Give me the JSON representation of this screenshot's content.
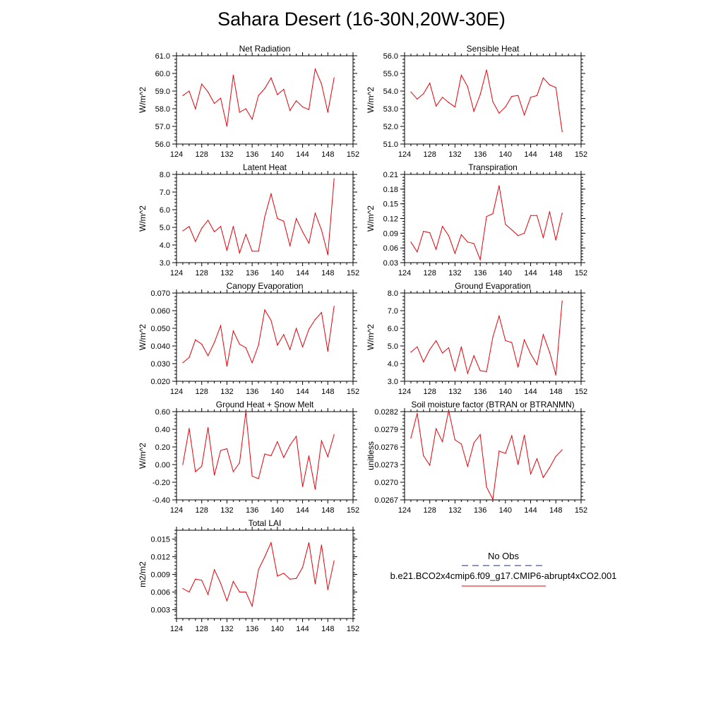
{
  "title": "Sahara Desert (16-30N,20W-30E)",
  "colors": {
    "model": "#e8000b",
    "obs": "#1f2a7a",
    "axis": "#000000"
  },
  "legend": {
    "obs_label": "No Obs",
    "model_label": "b.e21.BCO2x4cmip6.f09_g17.CMIP6-abrupt4xCO2.001"
  },
  "chart_data": [
    {
      "type": "line",
      "panel": "top-left",
      "title": "Net Radiation",
      "ylabel": "W/m^2",
      "xlim": [
        124,
        152
      ],
      "xticks": [
        "124",
        "128",
        "132",
        "136",
        "140",
        "144",
        "148",
        "152"
      ],
      "ylim": [
        56.0,
        61.0
      ],
      "yticks": [
        "56.0",
        "57.0",
        "58.0",
        "59.0",
        "60.0",
        "61.0"
      ],
      "x": [
        125,
        126,
        127,
        128,
        129,
        130,
        131,
        132,
        133,
        134,
        135,
        136,
        137,
        138,
        139,
        140,
        141,
        142,
        143,
        144,
        145,
        146,
        147,
        148,
        149
      ],
      "values": [
        58.75,
        59.0,
        58.0,
        59.4,
        58.95,
        58.3,
        58.6,
        57.0,
        59.9,
        57.8,
        58.0,
        57.4,
        58.75,
        59.15,
        59.75,
        58.8,
        59.1,
        57.9,
        58.45,
        58.1,
        57.95,
        60.25,
        59.4,
        57.8,
        59.75
      ]
    },
    {
      "type": "line",
      "panel": "top-right",
      "title": "Sensible Heat",
      "ylabel": "W/m^2",
      "xlim": [
        124,
        152
      ],
      "xticks": [
        "124",
        "128",
        "132",
        "136",
        "140",
        "144",
        "148",
        "152"
      ],
      "ylim": [
        51.0,
        56.0
      ],
      "yticks": [
        "51.0",
        "52.0",
        "53.0",
        "54.0",
        "55.0",
        "56.0"
      ],
      "x": [
        125,
        126,
        127,
        128,
        129,
        130,
        131,
        132,
        133,
        134,
        135,
        136,
        137,
        138,
        139,
        140,
        141,
        142,
        143,
        144,
        145,
        146,
        147,
        148,
        149
      ],
      "values": [
        53.95,
        53.55,
        53.85,
        54.45,
        53.15,
        53.65,
        53.35,
        53.1,
        54.9,
        54.25,
        52.85,
        53.8,
        55.2,
        53.4,
        52.75,
        53.1,
        53.7,
        53.75,
        52.65,
        53.65,
        53.75,
        54.75,
        54.35,
        54.2,
        51.7
      ]
    },
    {
      "type": "line",
      "panel": "row2-left",
      "title": "Latent Heat",
      "ylabel": "W/m^2",
      "xlim": [
        124,
        152
      ],
      "xticks": [
        "124",
        "128",
        "132",
        "136",
        "140",
        "144",
        "148",
        "152"
      ],
      "ylim": [
        3.0,
        8.0
      ],
      "yticks": [
        "3.0",
        "4.0",
        "5.0",
        "6.0",
        "7.0",
        "8.0"
      ],
      "x": [
        125,
        126,
        127,
        128,
        129,
        130,
        131,
        132,
        133,
        134,
        135,
        136,
        137,
        138,
        139,
        140,
        141,
        142,
        143,
        144,
        145,
        146,
        147,
        148,
        149
      ],
      "values": [
        4.8,
        5.05,
        4.2,
        4.95,
        5.4,
        4.75,
        5.05,
        3.7,
        5.05,
        3.55,
        4.6,
        3.65,
        3.65,
        5.6,
        6.9,
        5.5,
        5.35,
        3.95,
        5.5,
        4.75,
        4.1,
        5.8,
        4.85,
        3.45,
        7.75
      ]
    },
    {
      "type": "line",
      "panel": "row2-right",
      "title": "Transpiration",
      "ylabel": "W/m^2",
      "xlim": [
        124,
        152
      ],
      "xticks": [
        "124",
        "128",
        "132",
        "136",
        "140",
        "144",
        "148",
        "152"
      ],
      "ylim": [
        0.03,
        0.21
      ],
      "yticks": [
        "0.03",
        "0.06",
        "0.09",
        "0.12",
        "0.15",
        "0.18",
        "0.21"
      ],
      "x": [
        125,
        126,
        127,
        128,
        129,
        130,
        131,
        132,
        133,
        134,
        135,
        136,
        137,
        138,
        139,
        140,
        141,
        142,
        143,
        144,
        145,
        146,
        147,
        148,
        149
      ],
      "values": [
        0.072,
        0.052,
        0.094,
        0.091,
        0.057,
        0.104,
        0.085,
        0.049,
        0.087,
        0.072,
        0.069,
        0.036,
        0.124,
        0.13,
        0.187,
        0.108,
        0.097,
        0.085,
        0.09,
        0.126,
        0.126,
        0.081,
        0.134,
        0.076,
        0.131
      ]
    },
    {
      "type": "line",
      "panel": "row3-left",
      "title": "Canopy Evaporation",
      "ylabel": "W/m^2",
      "xlim": [
        124,
        152
      ],
      "xticks": [
        "124",
        "128",
        "132",
        "136",
        "140",
        "144",
        "148",
        "152"
      ],
      "ylim": [
        0.02,
        0.07
      ],
      "yticks": [
        "0.020",
        "0.030",
        "0.040",
        "0.050",
        "0.060",
        "0.070"
      ],
      "x": [
        125,
        126,
        127,
        128,
        129,
        130,
        131,
        132,
        133,
        134,
        135,
        136,
        137,
        138,
        139,
        140,
        141,
        142,
        143,
        144,
        145,
        146,
        147,
        148,
        149
      ],
      "values": [
        0.0305,
        0.0335,
        0.0435,
        0.041,
        0.0345,
        0.042,
        0.0515,
        0.0285,
        0.0485,
        0.041,
        0.039,
        0.0305,
        0.0405,
        0.0605,
        0.0545,
        0.0405,
        0.0465,
        0.038,
        0.05,
        0.0395,
        0.0495,
        0.055,
        0.059,
        0.037,
        0.0625
      ]
    },
    {
      "type": "line",
      "panel": "row3-right",
      "title": "Ground Evaporation",
      "ylabel": "W/m^2",
      "xlim": [
        124,
        152
      ],
      "xticks": [
        "124",
        "128",
        "132",
        "136",
        "140",
        "144",
        "148",
        "152"
      ],
      "ylim": [
        3.0,
        8.0
      ],
      "yticks": [
        "3.0",
        "4.0",
        "5.0",
        "6.0",
        "7.0",
        "8.0"
      ],
      "x": [
        125,
        126,
        127,
        128,
        129,
        130,
        131,
        132,
        133,
        134,
        135,
        136,
        137,
        138,
        139,
        140,
        141,
        142,
        143,
        144,
        145,
        146,
        147,
        148,
        149
      ],
      "values": [
        4.65,
        4.95,
        4.1,
        4.8,
        5.3,
        4.6,
        4.9,
        3.6,
        4.95,
        3.45,
        4.45,
        3.6,
        3.55,
        5.5,
        6.7,
        5.3,
        5.2,
        3.8,
        5.35,
        4.55,
        3.95,
        5.65,
        4.65,
        3.35,
        7.55
      ]
    },
    {
      "type": "line",
      "panel": "row4-left",
      "title": "Ground Heat + Snow Melt",
      "ylabel": "W/m^2",
      "xlim": [
        124,
        152
      ],
      "xticks": [
        "124",
        "128",
        "132",
        "136",
        "140",
        "144",
        "148",
        "152"
      ],
      "ylim": [
        -0.4,
        0.6
      ],
      "yticks": [
        "-0.40",
        "-0.20",
        "0.00",
        "0.20",
        "0.40",
        "0.60"
      ],
      "x": [
        125,
        126,
        127,
        128,
        129,
        130,
        131,
        132,
        133,
        134,
        135,
        136,
        137,
        138,
        139,
        140,
        141,
        142,
        143,
        144,
        145,
        146,
        147,
        148,
        149
      ],
      "values": [
        0.0,
        0.41,
        -0.08,
        -0.02,
        0.42,
        -0.12,
        0.16,
        0.18,
        -0.08,
        0.02,
        0.6,
        -0.13,
        -0.16,
        0.12,
        0.1,
        0.26,
        0.08,
        0.22,
        0.32,
        -0.25,
        0.1,
        -0.28,
        0.27,
        0.09,
        0.34
      ]
    },
    {
      "type": "line",
      "panel": "row4-right",
      "title": "Soil moisture factor (BTRAN or BTRANMN)",
      "ylabel": "unitless",
      "xlim": [
        124,
        152
      ],
      "xticks": [
        "124",
        "128",
        "132",
        "136",
        "140",
        "144",
        "148",
        "152"
      ],
      "ylim": [
        0.0267,
        0.0282
      ],
      "yticks": [
        "0.0267",
        "0.0270",
        "0.0273",
        "0.0276",
        "0.0279",
        "0.0282"
      ],
      "x": [
        125,
        126,
        127,
        128,
        129,
        130,
        131,
        132,
        133,
        134,
        135,
        136,
        137,
        138,
        139,
        140,
        141,
        142,
        143,
        144,
        145,
        146,
        147,
        148,
        149
      ],
      "values": [
        0.02775,
        0.02817,
        0.02745,
        0.02729,
        0.02791,
        0.02769,
        0.02822,
        0.02772,
        0.02765,
        0.02727,
        0.02767,
        0.02781,
        0.02692,
        0.02671,
        0.02753,
        0.02749,
        0.02779,
        0.0273,
        0.0278,
        0.02714,
        0.0274,
        0.02708,
        0.02725,
        0.02744,
        0.02755
      ]
    },
    {
      "type": "line",
      "panel": "row5-left",
      "title": "Total LAI",
      "ylabel": "m2/m2",
      "xlim": [
        124,
        152
      ],
      "xticks": [
        "124",
        "128",
        "132",
        "136",
        "140",
        "144",
        "148",
        "152"
      ],
      "ylim": [
        0.0015,
        0.0165
      ],
      "yticks": [
        "0.003",
        "0.006",
        "0.009",
        "0.012",
        "0.015"
      ],
      "x": [
        125,
        126,
        127,
        128,
        129,
        130,
        131,
        132,
        133,
        134,
        135,
        136,
        137,
        138,
        139,
        140,
        141,
        142,
        143,
        144,
        145,
        146,
        147,
        148,
        149
      ],
      "values": [
        0.0066,
        0.006,
        0.0082,
        0.008,
        0.0056,
        0.0098,
        0.0075,
        0.0045,
        0.0078,
        0.006,
        0.006,
        0.0036,
        0.0098,
        0.012,
        0.0144,
        0.0087,
        0.0092,
        0.0082,
        0.0083,
        0.0102,
        0.0144,
        0.0074,
        0.014,
        0.0064,
        0.0113
      ]
    }
  ]
}
